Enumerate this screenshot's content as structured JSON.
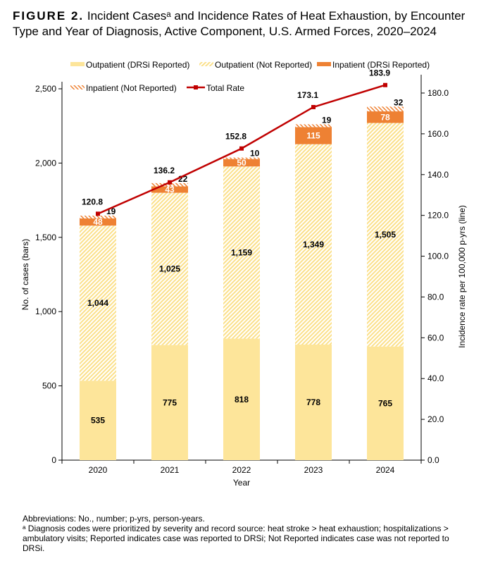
{
  "title": {
    "label": "FIGURE 2.",
    "text": "Incident Casesᵃ and Incidence Rates of Heat Exhaustion, by Encounter Type and Year of Diagnosis, Active Component, U.S. Armed Forces, 2020–2024"
  },
  "notes": [
    "Abbreviations: No., number; p-yrs, person-years.",
    "ᵃ Diagnosis codes were prioritized by severity and record source: heat stroke > heat exhaustion; hospitalizations > ambulatory visits; Reported indicates case was reported to DRSi; Not Reported indicates case was not reported to DRSi."
  ],
  "chart_data": {
    "type": "bar+line",
    "stacked": true,
    "categories": [
      "2020",
      "2021",
      "2022",
      "2023",
      "2024"
    ],
    "xlabel": "Year",
    "ylabel": "No. of cases (bars)",
    "y2label": "Incidence rate per 100,000 p-yrs (line)",
    "ylim": [
      0,
      2500
    ],
    "yticks": [
      "0",
      "500",
      "1,000",
      "1,500",
      "2,000",
      "2,500"
    ],
    "y2lim": [
      0,
      180
    ],
    "y2ticks": [
      "0.0",
      "20.0",
      "40.0",
      "60.0",
      "80.0",
      "100.0",
      "120.0",
      "140.0",
      "160.0",
      "180.0"
    ],
    "legend_position": "top",
    "series": [
      {
        "name": "Outpatient (DRSi Reported)",
        "values": [
          535,
          775,
          818,
          778,
          765
        ],
        "labels": [
          "535",
          "775",
          "818",
          "778",
          "765"
        ],
        "color": "#fde59a",
        "pattern": "solid"
      },
      {
        "name": "Outpatient (Not Reported)",
        "values": [
          1044,
          1025,
          1159,
          1349,
          1505
        ],
        "labels": [
          "1,044",
          "1,025",
          "1,159",
          "1,349",
          "1,505"
        ],
        "color": "#fbe08a",
        "pattern": "hatch"
      },
      {
        "name": "Inpatient (DRSi Reported)",
        "values": [
          48,
          43,
          50,
          115,
          78
        ],
        "labels": [
          "48",
          "43",
          "50",
          "115",
          "78"
        ],
        "color": "#ee8133",
        "pattern": "solid"
      },
      {
        "name": "Inpatient (Not Reported)",
        "values": [
          19,
          22,
          10,
          19,
          32
        ],
        "labels": [
          "19",
          "22",
          "10",
          "19",
          "32"
        ],
        "color": "#ee8133",
        "pattern": "hatch"
      },
      {
        "name": "Total Rate",
        "type": "line",
        "axis": "right",
        "values": [
          120.8,
          136.2,
          152.8,
          173.1,
          183.9
        ],
        "labels": [
          "120.8",
          "136.2",
          "152.8",
          "173.1",
          "183.9"
        ],
        "color": "#c00000"
      }
    ]
  }
}
